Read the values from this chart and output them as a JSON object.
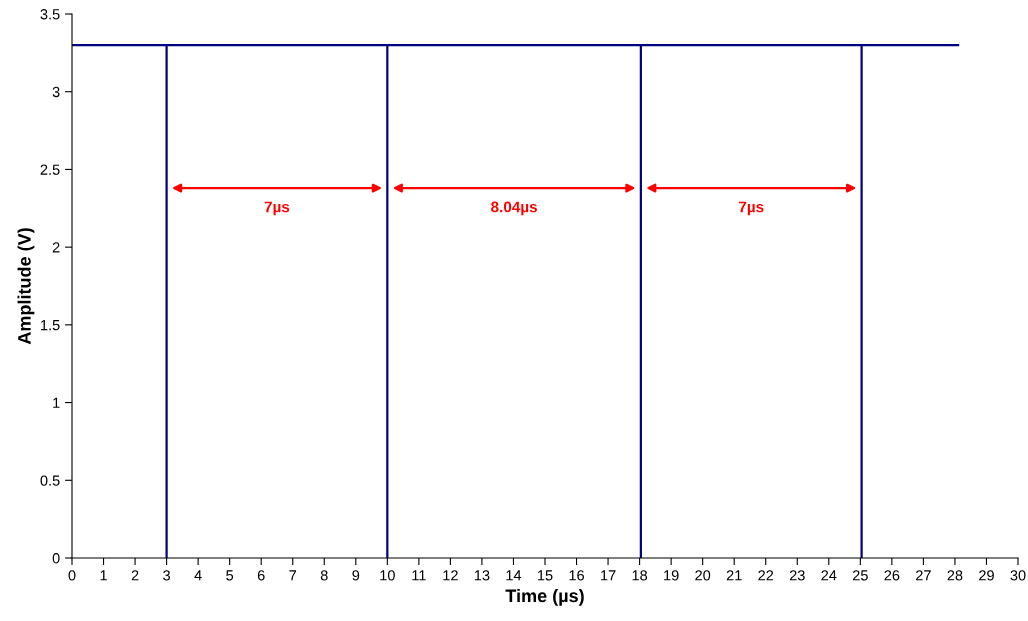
{
  "chart_data": {
    "type": "line",
    "xlabel": "Time (µs)",
    "ylabel": "Amplitude (V)",
    "x": [
      0,
      3,
      3,
      3,
      10,
      10,
      10,
      18.04,
      18.04,
      18.04,
      25.04,
      25.04,
      25.04,
      28.1
    ],
    "series": [
      {
        "color": "#000080",
        "values": [
          3.3,
          3.3,
          0,
          3.3,
          3.3,
          0,
          3.3,
          3.3,
          0,
          3.3,
          3.3,
          0,
          3.3,
          3.3
        ]
      }
    ],
    "xlim": [
      0,
      30
    ],
    "xticks": [
      0,
      1,
      2,
      3,
      4,
      5,
      6,
      7,
      8,
      9,
      10,
      11,
      12,
      13,
      14,
      15,
      16,
      17,
      18,
      19,
      20,
      21,
      22,
      23,
      24,
      25,
      26,
      27,
      28,
      29,
      30
    ],
    "ylim": [
      0,
      3.5
    ],
    "yticks": [
      0,
      0.5,
      1,
      1.5,
      2,
      2.5,
      3,
      3.5
    ],
    "annotations": [
      "7µs",
      "8.04µs",
      "7µs"
    ],
    "grid": false,
    "legend": false,
    "marker": "none",
    "line_style": "solid"
  }
}
